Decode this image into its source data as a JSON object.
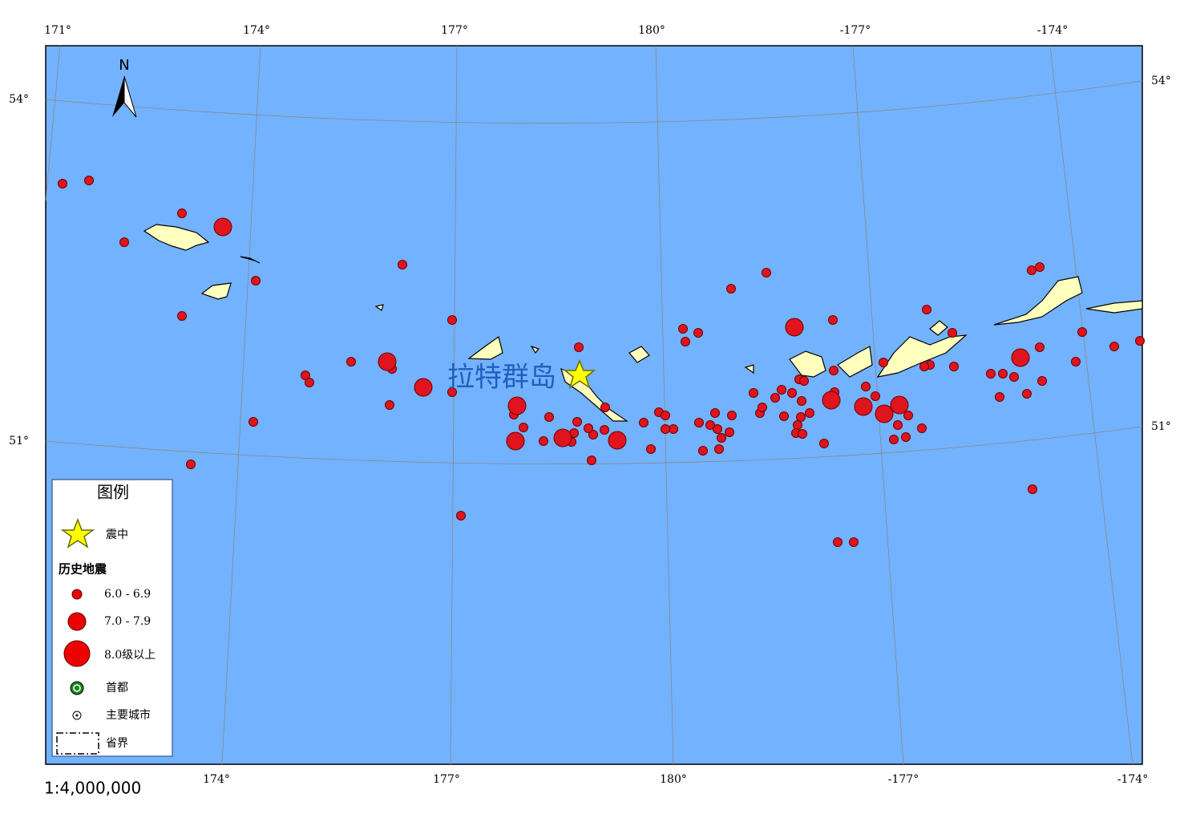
{
  "map": {
    "north": "N",
    "place_label": "拉特群岛",
    "scale": "1:4,000,000",
    "top_labels": [
      "171°",
      "174°",
      "177°",
      "180°",
      "-177°",
      "-174°"
    ],
    "bottom_labels": [
      "174°",
      "177°",
      "180°",
      "-177°",
      "-174°"
    ],
    "left_labels": [
      "54°",
      "51°"
    ],
    "right_labels": [
      "54°",
      "51°"
    ]
  },
  "legend": {
    "title": "图例",
    "epicenter": "震中",
    "history_title": "历史地震",
    "classes": [
      "6.0 - 6.9",
      "7.0 - 7.9",
      "8.0级以上"
    ],
    "capital": "首都",
    "city": "主要城市",
    "boundary": "省界"
  }
}
